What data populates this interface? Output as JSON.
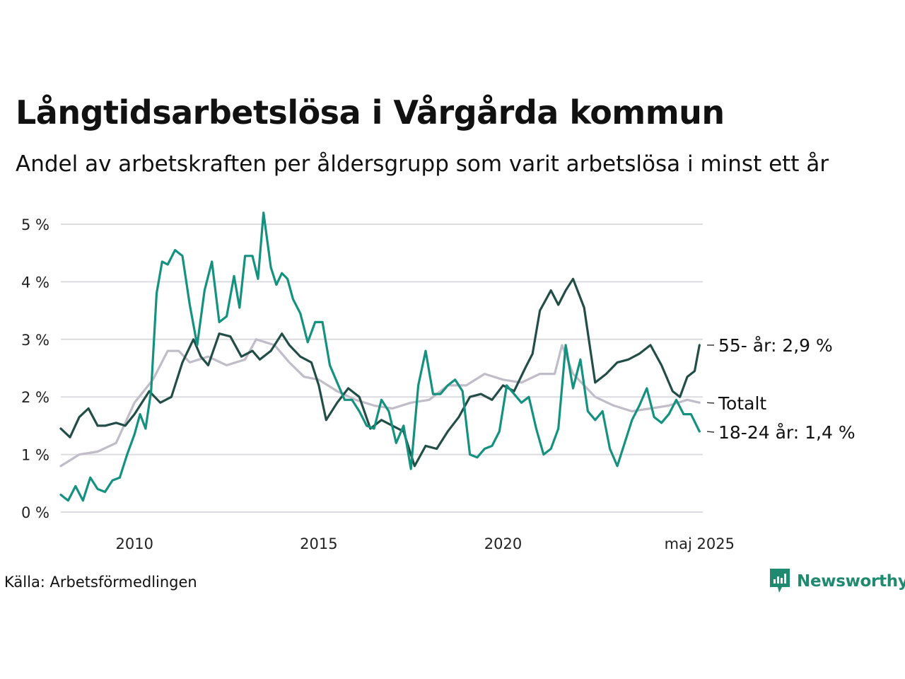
{
  "title": "Långtidsarbetslösa i Vårgårda kommun",
  "subtitle": "Andel av arbetskraften per åldersgrupp som varit arbetslösa i minst ett år",
  "source": "Källa: Arbetsförmedlingen",
  "brand": "Newsworthy",
  "colors": {
    "totalt": "#c0bcc8",
    "age55": "#234d47",
    "age1824": "#14917f",
    "grid": "#dcdce0",
    "brand": "#1f8a70"
  },
  "chart_data": {
    "type": "line",
    "title": "Långtidsarbetslösa i Vårgårda kommun",
    "xlabel": "",
    "ylabel": "",
    "xlim": [
      2008.0,
      2025.42
    ],
    "ylim": [
      0,
      5.2
    ],
    "yticks": [
      0,
      1,
      2,
      3,
      4,
      5
    ],
    "ytick_labels": [
      "0 %",
      "1 %",
      "2 %",
      "3 %",
      "4 %",
      "5 %"
    ],
    "xticks": [
      2010,
      2015,
      2020,
      2025.33
    ],
    "xtick_labels": [
      "2010",
      "2015",
      "2020",
      "maj 2025"
    ],
    "grid": true,
    "series": [
      {
        "name": "Totalt",
        "label": "Totalt",
        "color": "#c0bcc8",
        "x": [
          2008.0,
          2008.5,
          2009.0,
          2009.5,
          2010.0,
          2010.5,
          2010.9,
          2011.2,
          2011.5,
          2012.0,
          2012.5,
          2013.0,
          2013.3,
          2013.8,
          2014.2,
          2014.6,
          2015.0,
          2015.5,
          2016.0,
          2016.5,
          2017.0,
          2017.5,
          2018.0,
          2018.5,
          2019.0,
          2019.5,
          2020.0,
          2020.5,
          2021.0,
          2021.4,
          2021.6,
          2021.9,
          2022.2,
          2022.5,
          2023.0,
          2023.5,
          2024.0,
          2024.5,
          2025.0,
          2025.33
        ],
        "y": [
          0.8,
          1.0,
          1.05,
          1.2,
          1.9,
          2.3,
          2.8,
          2.8,
          2.6,
          2.7,
          2.55,
          2.65,
          3.0,
          2.9,
          2.6,
          2.35,
          2.3,
          2.1,
          1.95,
          1.85,
          1.8,
          1.9,
          1.95,
          2.2,
          2.2,
          2.4,
          2.3,
          2.25,
          2.4,
          2.4,
          2.9,
          2.4,
          2.2,
          2.0,
          1.85,
          1.75,
          1.8,
          1.85,
          1.95,
          1.9
        ]
      },
      {
        "name": "55- år",
        "label": "55- år: 2,9 %",
        "color": "#234d47",
        "x": [
          2008.0,
          2008.25,
          2008.5,
          2008.75,
          2009.0,
          2009.2,
          2009.5,
          2009.75,
          2010.0,
          2010.2,
          2010.4,
          2010.7,
          2011.0,
          2011.3,
          2011.6,
          2011.8,
          2012.0,
          2012.3,
          2012.6,
          2012.9,
          2013.2,
          2013.4,
          2013.7,
          2014.0,
          2014.2,
          2014.5,
          2014.8,
          2015.0,
          2015.2,
          2015.5,
          2015.8,
          2016.1,
          2016.4,
          2016.7,
          2017.0,
          2017.3,
          2017.6,
          2017.9,
          2018.2,
          2018.5,
          2018.8,
          2019.1,
          2019.4,
          2019.7,
          2020.0,
          2020.3,
          2020.6,
          2020.8,
          2021.0,
          2021.3,
          2021.5,
          2021.7,
          2021.9,
          2022.2,
          2022.5,
          2022.8,
          2023.1,
          2023.4,
          2023.7,
          2024.0,
          2024.3,
          2024.6,
          2024.8,
          2025.0,
          2025.2,
          2025.33
        ],
        "y": [
          1.45,
          1.3,
          1.65,
          1.8,
          1.5,
          1.5,
          1.55,
          1.5,
          1.7,
          1.9,
          2.1,
          1.9,
          2.0,
          2.6,
          3.0,
          2.7,
          2.55,
          3.1,
          3.05,
          2.7,
          2.8,
          2.65,
          2.8,
          3.1,
          2.9,
          2.7,
          2.6,
          2.2,
          1.6,
          1.9,
          2.15,
          2.0,
          1.45,
          1.6,
          1.5,
          1.4,
          0.8,
          1.15,
          1.1,
          1.4,
          1.65,
          2.0,
          2.05,
          1.95,
          2.2,
          2.1,
          2.5,
          2.75,
          3.5,
          3.85,
          3.6,
          3.85,
          4.05,
          3.55,
          2.25,
          2.4,
          2.6,
          2.65,
          2.75,
          2.9,
          2.55,
          2.1,
          2.0,
          2.35,
          2.45,
          2.9
        ]
      },
      {
        "name": "18-24 år",
        "label": "18-24 år: 1,4 %",
        "color": "#14917f",
        "x": [
          2008.0,
          2008.2,
          2008.4,
          2008.6,
          2008.8,
          2009.0,
          2009.2,
          2009.4,
          2009.6,
          2009.8,
          2010.0,
          2010.15,
          2010.3,
          2010.45,
          2010.6,
          2010.75,
          2010.9,
          2011.1,
          2011.3,
          2011.5,
          2011.7,
          2011.9,
          2012.1,
          2012.3,
          2012.5,
          2012.7,
          2012.85,
          2013.0,
          2013.2,
          2013.35,
          2013.5,
          2013.7,
          2013.85,
          2014.0,
          2014.15,
          2014.3,
          2014.5,
          2014.7,
          2014.9,
          2015.1,
          2015.3,
          2015.5,
          2015.7,
          2015.9,
          2016.1,
          2016.3,
          2016.5,
          2016.7,
          2016.9,
          2017.1,
          2017.3,
          2017.5,
          2017.7,
          2017.9,
          2018.1,
          2018.3,
          2018.5,
          2018.7,
          2018.9,
          2019.1,
          2019.3,
          2019.5,
          2019.7,
          2019.9,
          2020.1,
          2020.3,
          2020.5,
          2020.7,
          2020.9,
          2021.1,
          2021.3,
          2021.5,
          2021.7,
          2021.9,
          2022.1,
          2022.3,
          2022.5,
          2022.7,
          2022.9,
          2023.1,
          2023.3,
          2023.5,
          2023.7,
          2023.9,
          2024.1,
          2024.3,
          2024.5,
          2024.7,
          2024.9,
          2025.1,
          2025.33
        ],
        "y": [
          0.3,
          0.2,
          0.45,
          0.2,
          0.6,
          0.4,
          0.35,
          0.55,
          0.6,
          1.0,
          1.35,
          1.7,
          1.45,
          2.1,
          3.8,
          4.35,
          4.3,
          4.55,
          4.45,
          3.6,
          2.9,
          3.85,
          4.35,
          3.3,
          3.4,
          4.1,
          3.55,
          4.45,
          4.45,
          4.05,
          5.2,
          4.25,
          3.95,
          4.15,
          4.05,
          3.7,
          3.45,
          2.95,
          3.3,
          3.3,
          2.55,
          2.25,
          1.95,
          1.95,
          1.75,
          1.5,
          1.45,
          1.95,
          1.75,
          1.2,
          1.5,
          0.75,
          2.2,
          2.8,
          2.05,
          2.05,
          2.2,
          2.3,
          2.1,
          1.0,
          0.95,
          1.1,
          1.15,
          1.4,
          2.2,
          2.05,
          1.9,
          2.0,
          1.45,
          1.0,
          1.1,
          1.45,
          2.9,
          2.15,
          2.65,
          1.75,
          1.6,
          1.75,
          1.1,
          0.8,
          1.2,
          1.6,
          1.85,
          2.15,
          1.65,
          1.55,
          1.7,
          1.95,
          1.7,
          1.7,
          1.4
        ]
      }
    ]
  }
}
